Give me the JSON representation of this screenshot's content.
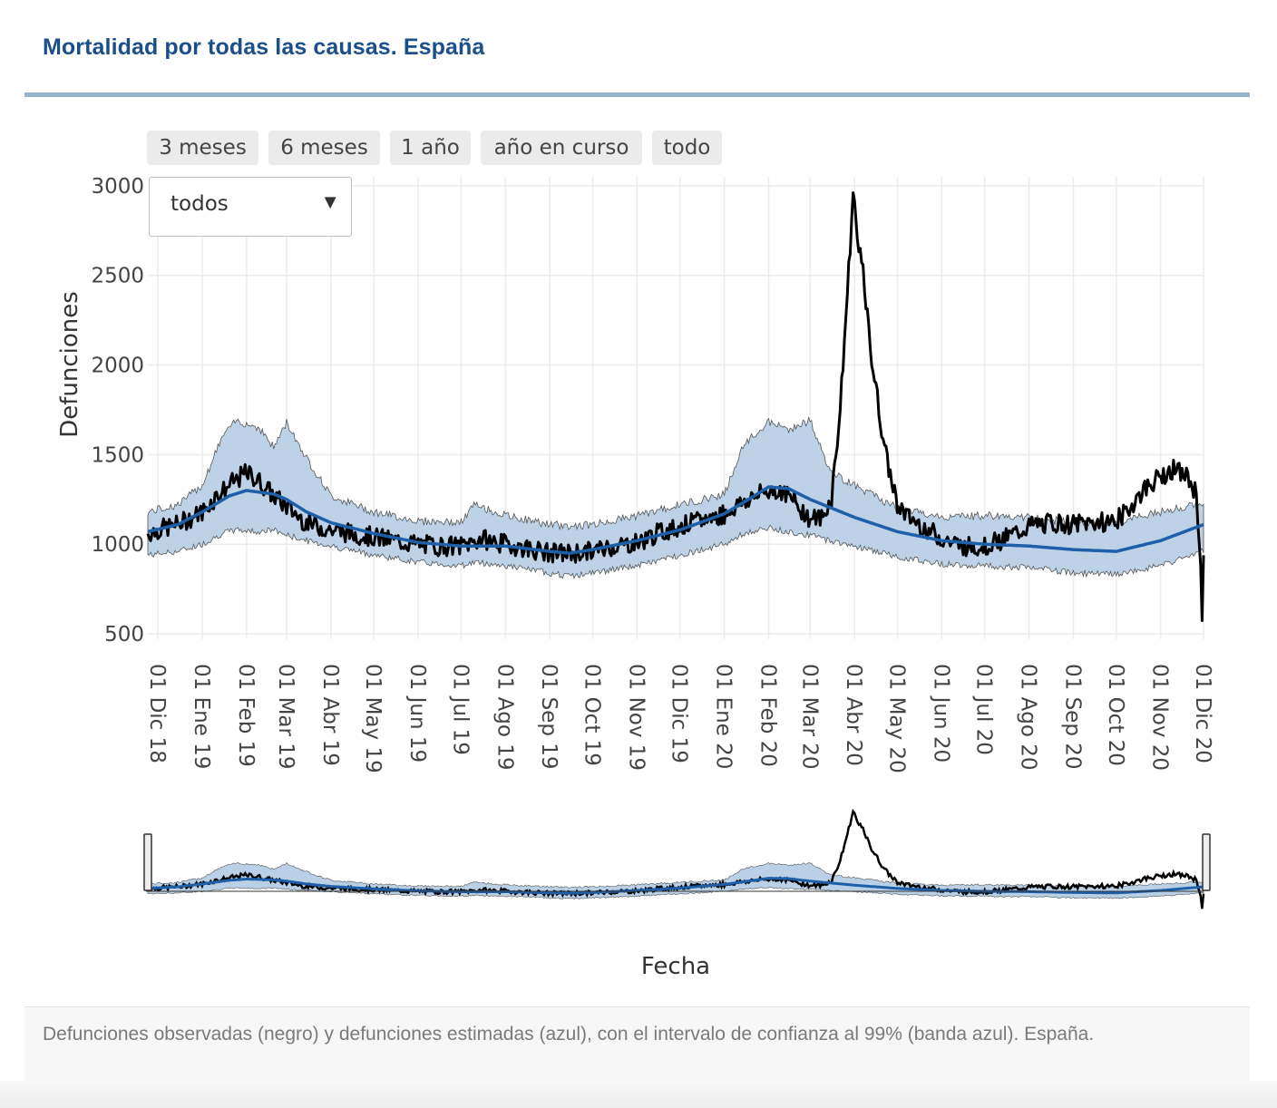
{
  "header": {
    "title": "Mortalidad por todas las causas. España"
  },
  "range_buttons": [
    {
      "label": "3 meses"
    },
    {
      "label": "6 meses"
    },
    {
      "label": "1 año"
    },
    {
      "label": "año en curso"
    },
    {
      "label": "todo"
    }
  ],
  "dropdown": {
    "selected": "todos"
  },
  "caption": "Defunciones observadas (negro) y defunciones estimadas (azul), con el intervalo de confianza al 99% (banda azul). España.",
  "colors": {
    "observed": "#000000",
    "expected": "#1f5fa8",
    "band": "#b9d0e6",
    "title": "#1a4f8c"
  },
  "chart_data": {
    "type": "line",
    "title": "Mortalidad por todas las causas. España",
    "xlabel": "Fecha",
    "ylabel": "Defunciones",
    "ylim": [
      470,
      3050
    ],
    "yticks": [
      500,
      1000,
      1500,
      2000,
      2500,
      3000
    ],
    "x_start": "2018-11-24",
    "x_end": "2020-12-01",
    "xtick_labels": [
      "01 Dic 18",
      "01 Ene 19",
      "01 Feb 19",
      "01 Mar 19",
      "01 Abr 19",
      "01 May 19",
      "01 Jun 19",
      "01 Jul 19",
      "01 Ago 19",
      "01 Sep 19",
      "01 Oct 19",
      "01 Nov 19",
      "01 Dic 19",
      "01 Ene 20",
      "01 Feb 20",
      "01 Mar 20",
      "01 Abr 20",
      "01 May 20",
      "01 Jun 20",
      "01 Jul 20",
      "01 Ago 20",
      "01 Sep 20",
      "01 Oct 20",
      "01 Nov 20",
      "01 Dic 20"
    ],
    "series": [
      {
        "name": "observadas",
        "color": "#000000",
        "points": [
          [
            "2018-11-24",
            1060
          ],
          [
            "2018-12-01",
            1080
          ],
          [
            "2018-12-15",
            1110
          ],
          [
            "2019-01-01",
            1180
          ],
          [
            "2019-01-10",
            1260
          ],
          [
            "2019-01-20",
            1330
          ],
          [
            "2019-02-01",
            1400
          ],
          [
            "2019-02-10",
            1350
          ],
          [
            "2019-02-20",
            1270
          ],
          [
            "2019-03-01",
            1210
          ],
          [
            "2019-03-15",
            1120
          ],
          [
            "2019-04-01",
            1080
          ],
          [
            "2019-04-15",
            1060
          ],
          [
            "2019-05-01",
            1040
          ],
          [
            "2019-05-15",
            1020
          ],
          [
            "2019-06-01",
            1000
          ],
          [
            "2019-06-15",
            990
          ],
          [
            "2019-07-01",
            990
          ],
          [
            "2019-07-15",
            1030
          ],
          [
            "2019-08-01",
            1000
          ],
          [
            "2019-08-15",
            980
          ],
          [
            "2019-09-01",
            950
          ],
          [
            "2019-09-15",
            950
          ],
          [
            "2019-10-01",
            960
          ],
          [
            "2019-10-15",
            990
          ],
          [
            "2019-11-01",
            1010
          ],
          [
            "2019-11-15",
            1060
          ],
          [
            "2019-12-01",
            1100
          ],
          [
            "2019-12-15",
            1130
          ],
          [
            "2020-01-01",
            1170
          ],
          [
            "2020-01-15",
            1240
          ],
          [
            "2020-02-01",
            1300
          ],
          [
            "2020-02-10",
            1300
          ],
          [
            "2020-02-20",
            1230
          ],
          [
            "2020-03-01",
            1140
          ],
          [
            "2020-03-10",
            1150
          ],
          [
            "2020-03-16",
            1260
          ],
          [
            "2020-03-22",
            1750
          ],
          [
            "2020-03-27",
            2400
          ],
          [
            "2020-03-31",
            2950
          ],
          [
            "2020-04-03",
            2750
          ],
          [
            "2020-04-07",
            2500
          ],
          [
            "2020-04-12",
            2100
          ],
          [
            "2020-04-18",
            1750
          ],
          [
            "2020-04-24",
            1450
          ],
          [
            "2020-05-01",
            1230
          ],
          [
            "2020-05-08",
            1150
          ],
          [
            "2020-05-15",
            1120
          ],
          [
            "2020-06-01",
            1030
          ],
          [
            "2020-06-15",
            990
          ],
          [
            "2020-07-01",
            990
          ],
          [
            "2020-07-15",
            1030
          ],
          [
            "2020-08-01",
            1100
          ],
          [
            "2020-08-15",
            1120
          ],
          [
            "2020-09-01",
            1110
          ],
          [
            "2020-09-15",
            1120
          ],
          [
            "2020-10-01",
            1130
          ],
          [
            "2020-10-10",
            1200
          ],
          [
            "2020-10-20",
            1300
          ],
          [
            "2020-11-01",
            1380
          ],
          [
            "2020-11-10",
            1420
          ],
          [
            "2020-11-20",
            1370
          ],
          [
            "2020-11-26",
            1280
          ],
          [
            "2020-11-29",
            900
          ],
          [
            "2020-11-30",
            550
          ],
          [
            "2020-12-01",
            900
          ]
        ]
      },
      {
        "name": "estimadas",
        "color": "#1f5fa8",
        "points": [
          [
            "2018-11-24",
            1070
          ],
          [
            "2018-12-15",
            1110
          ],
          [
            "2019-01-01",
            1180
          ],
          [
            "2019-01-20",
            1270
          ],
          [
            "2019-02-01",
            1300
          ],
          [
            "2019-02-20",
            1280
          ],
          [
            "2019-03-01",
            1250
          ],
          [
            "2019-03-15",
            1180
          ],
          [
            "2019-04-01",
            1120
          ],
          [
            "2019-05-01",
            1060
          ],
          [
            "2019-06-01",
            1010
          ],
          [
            "2019-07-01",
            990
          ],
          [
            "2019-08-01",
            990
          ],
          [
            "2019-09-01",
            960
          ],
          [
            "2019-09-15",
            950
          ],
          [
            "2019-10-01",
            970
          ],
          [
            "2019-11-01",
            1020
          ],
          [
            "2019-12-01",
            1080
          ],
          [
            "2020-01-01",
            1170
          ],
          [
            "2020-01-20",
            1260
          ],
          [
            "2020-02-01",
            1320
          ],
          [
            "2020-02-15",
            1310
          ],
          [
            "2020-03-01",
            1250
          ],
          [
            "2020-04-01",
            1150
          ],
          [
            "2020-05-01",
            1070
          ],
          [
            "2020-06-01",
            1020
          ],
          [
            "2020-07-01",
            1000
          ],
          [
            "2020-08-01",
            990
          ],
          [
            "2020-09-01",
            970
          ],
          [
            "2020-10-01",
            960
          ],
          [
            "2020-11-01",
            1020
          ],
          [
            "2020-12-01",
            1110
          ]
        ]
      }
    ],
    "confidence_band": {
      "name": "intervalo de confianza 99%",
      "color": "#b9d0e6",
      "points": [
        [
          "2018-11-24",
          940,
          1180
        ],
        [
          "2018-12-15",
          960,
          1220
        ],
        [
          "2019-01-01",
          1000,
          1330
        ],
        [
          "2019-01-15",
          1060,
          1600
        ],
        [
          "2019-01-25",
          1080,
          1690
        ],
        [
          "2019-02-10",
          1070,
          1650
        ],
        [
          "2019-02-20",
          1080,
          1540
        ],
        [
          "2019-03-01",
          1050,
          1680
        ],
        [
          "2019-03-15",
          1020,
          1480
        ],
        [
          "2019-04-01",
          990,
          1270
        ],
        [
          "2019-05-01",
          940,
          1180
        ],
        [
          "2019-06-01",
          900,
          1130
        ],
        [
          "2019-07-01",
          880,
          1120
        ],
        [
          "2019-07-10",
          900,
          1220
        ],
        [
          "2019-08-01",
          880,
          1160
        ],
        [
          "2019-09-01",
          840,
          1110
        ],
        [
          "2019-09-15",
          820,
          1100
        ],
        [
          "2019-10-01",
          840,
          1110
        ],
        [
          "2019-11-01",
          880,
          1160
        ],
        [
          "2019-12-01",
          940,
          1220
        ],
        [
          "2020-01-01",
          1000,
          1280
        ],
        [
          "2020-01-15",
          1060,
          1560
        ],
        [
          "2020-02-01",
          1090,
          1680
        ],
        [
          "2020-02-15",
          1070,
          1640
        ],
        [
          "2020-03-01",
          1050,
          1690
        ],
        [
          "2020-03-15",
          1020,
          1400
        ],
        [
          "2020-04-01",
          990,
          1330
        ],
        [
          "2020-05-01",
          930,
          1200
        ],
        [
          "2020-06-01",
          890,
          1150
        ],
        [
          "2020-07-01",
          880,
          1160
        ],
        [
          "2020-08-01",
          870,
          1150
        ],
        [
          "2020-09-01",
          840,
          1120
        ],
        [
          "2020-10-01",
          830,
          1120
        ],
        [
          "2020-11-01",
          880,
          1180
        ],
        [
          "2020-12-01",
          960,
          1230
        ]
      ]
    },
    "rangeslider": true
  }
}
